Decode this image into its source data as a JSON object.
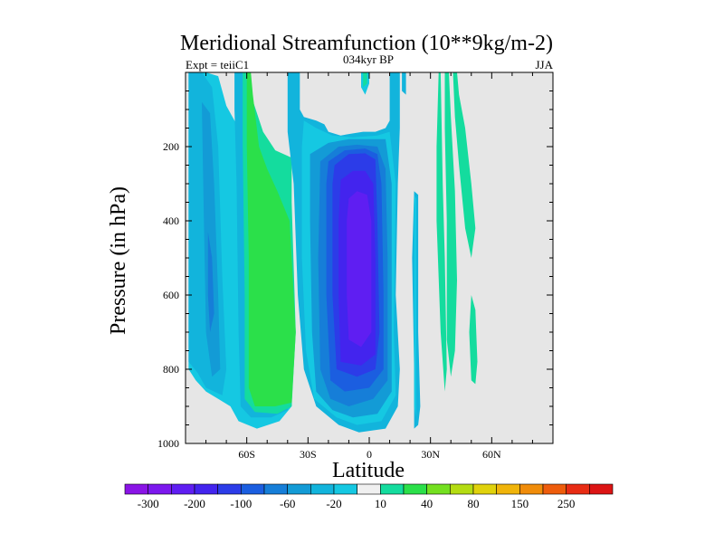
{
  "chart_data": {
    "type": "heatmap",
    "title": "Meridional Streamfunction (10**9kg/m-2)",
    "left_label": "Expt = teiiC1",
    "center_label": "034kyr BP",
    "right_label": "JJA",
    "xlabel": "Latitude",
    "ylabel": "Pressure (in hPa)",
    "xlim": [
      -90,
      90
    ],
    "ylim": [
      0,
      1000
    ],
    "y_inverted": true,
    "x_ticks": [
      {
        "value": -60,
        "label": "60S"
      },
      {
        "value": -30,
        "label": "30S"
      },
      {
        "value": 0,
        "label": "0"
      },
      {
        "value": 30,
        "label": "30N"
      },
      {
        "value": 60,
        "label": "60N"
      }
    ],
    "y_ticks": [
      {
        "value": 200,
        "label": "200"
      },
      {
        "value": 400,
        "label": "400"
      },
      {
        "value": 600,
        "label": "600"
      },
      {
        "value": 800,
        "label": "800"
      },
      {
        "value": 1000,
        "label": "1000"
      }
    ],
    "missing_color": "#e6e6e6",
    "colorbar": {
      "levels": [
        -300,
        -250,
        -200,
        -150,
        -100,
        -80,
        -60,
        -40,
        -20,
        -10,
        10,
        20,
        40,
        60,
        80,
        100,
        150,
        200,
        250,
        300
      ],
      "labels": [
        {
          "index": 1,
          "label": "-300"
        },
        {
          "index": 3,
          "label": "-200"
        },
        {
          "index": 5,
          "label": "-100"
        },
        {
          "index": 7,
          "label": "-60"
        },
        {
          "index": 9,
          "label": "-20"
        },
        {
          "index": 11,
          "label": "10"
        },
        {
          "index": 13,
          "label": "40"
        },
        {
          "index": 15,
          "label": "80"
        },
        {
          "index": 17,
          "label": "150"
        },
        {
          "index": 19,
          "label": "250"
        }
      ],
      "colors": [
        "#8a14e6",
        "#7c18ee",
        "#5f1ef2",
        "#4324ee",
        "#2c3ce8",
        "#1b5ee0",
        "#167ed8",
        "#139bd6",
        "#12b4dc",
        "#15c8e2",
        "#f0f0f0",
        "#14dc9e",
        "#2be04a",
        "#74e020",
        "#b4dc12",
        "#e0d20c",
        "#f0b40a",
        "#f08c0a",
        "#ee5c0c",
        "#e82c14",
        "#dc1414"
      ]
    },
    "regions": [
      {
        "fill": "#15c8e2",
        "points": [
          [
            -88.5,
            0
          ],
          [
            -80,
            0
          ],
          [
            -74,
            10
          ],
          [
            -70,
            90
          ],
          [
            -62,
            170
          ],
          [
            -55,
            210
          ],
          [
            -48,
            240
          ],
          [
            -44,
            270
          ],
          [
            -40,
            400
          ],
          [
            -37,
            700
          ],
          [
            -38,
            900
          ],
          [
            -44,
            940
          ],
          [
            -55,
            960
          ],
          [
            -64,
            940
          ],
          [
            -68,
            900
          ],
          [
            -74,
            880
          ],
          [
            -80,
            860
          ],
          [
            -85,
            830
          ],
          [
            -88.5,
            800
          ]
        ]
      },
      {
        "fill": "#12b4dc",
        "points": [
          [
            -88.5,
            0
          ],
          [
            -82,
            0
          ],
          [
            -77,
            40
          ],
          [
            -74,
            200
          ],
          [
            -72,
            550
          ],
          [
            -70,
            800
          ],
          [
            -72,
            870
          ],
          [
            -80,
            850
          ],
          [
            -84,
            810
          ],
          [
            -88.5,
            780
          ]
        ]
      },
      {
        "fill": "#139bd6",
        "points": [
          [
            -82,
            80
          ],
          [
            -78,
            110
          ],
          [
            -76,
            300
          ],
          [
            -74,
            600
          ],
          [
            -73,
            800
          ],
          [
            -77,
            820
          ],
          [
            -80,
            700
          ],
          [
            -81,
            400
          ]
        ]
      },
      {
        "fill": "#167ed8",
        "points": [
          [
            -79,
            430
          ],
          [
            -77,
            500
          ],
          [
            -76,
            650
          ],
          [
            -78,
            700
          ],
          [
            -79,
            600
          ]
        ]
      },
      {
        "fill": "#12b4dc",
        "points": [
          [
            -66,
            0
          ],
          [
            -62,
            0
          ],
          [
            -60,
            80
          ],
          [
            -56,
            160
          ],
          [
            -49,
            210
          ],
          [
            -45,
            240
          ],
          [
            -40,
            400
          ],
          [
            -37,
            700
          ],
          [
            -40,
            910
          ],
          [
            -48,
            930
          ],
          [
            -58,
            930
          ],
          [
            -63,
            900
          ],
          [
            -64,
            700
          ],
          [
            -65,
            300
          ],
          [
            -66,
            100
          ]
        ]
      },
      {
        "fill": "#14dc9e",
        "points": [
          [
            -62,
            0
          ],
          [
            -60,
            0
          ],
          [
            -58,
            60
          ],
          [
            -52,
            160
          ],
          [
            -46,
            210
          ],
          [
            -38,
            230
          ],
          [
            -38,
            350
          ],
          [
            -36,
            700
          ],
          [
            -38,
            900
          ],
          [
            -45,
            920
          ],
          [
            -56,
            915
          ],
          [
            -61,
            880
          ],
          [
            -61,
            600
          ],
          [
            -62,
            200
          ]
        ]
      },
      {
        "fill": "#2be04a",
        "points": [
          [
            -60,
            0
          ],
          [
            -58,
            0
          ],
          [
            -57,
            60
          ],
          [
            -54,
            200
          ],
          [
            -50,
            260
          ],
          [
            -45,
            320
          ],
          [
            -39,
            400
          ],
          [
            -36,
            700
          ],
          [
            -38,
            890
          ],
          [
            -46,
            900
          ],
          [
            -56,
            900
          ],
          [
            -59,
            850
          ],
          [
            -59,
            500
          ],
          [
            -60,
            200
          ]
        ]
      },
      {
        "fill": "#12b4dc",
        "points": [
          [
            -40,
            0
          ],
          [
            -34,
            0
          ],
          [
            -34,
            100
          ],
          [
            -32,
            120
          ],
          [
            -26,
            130
          ],
          [
            -22,
            140
          ],
          [
            -20,
            160
          ],
          [
            -14,
            170
          ],
          [
            -9,
            165
          ],
          [
            -3,
            160
          ],
          [
            3,
            160
          ],
          [
            8,
            150
          ],
          [
            10,
            130
          ],
          [
            10,
            0
          ],
          [
            15,
            0
          ],
          [
            15,
            150
          ],
          [
            14,
            300
          ],
          [
            13,
            600
          ],
          [
            15,
            800
          ],
          [
            14,
            900
          ],
          [
            8,
            960
          ],
          [
            -5,
            970
          ],
          [
            -15,
            950
          ],
          [
            -26,
            900
          ],
          [
            -32,
            800
          ],
          [
            -35,
            600
          ],
          [
            -37,
            300
          ],
          [
            -40,
            160
          ]
        ]
      },
      {
        "fill": "#15c8e2",
        "points": [
          [
            -32,
            130
          ],
          [
            -26,
            150
          ],
          [
            -18,
            170
          ],
          [
            -8,
            175
          ],
          [
            4,
            170
          ],
          [
            10,
            160
          ],
          [
            13,
            300
          ],
          [
            12,
            700
          ],
          [
            13,
            870
          ],
          [
            6,
            940
          ],
          [
            -6,
            950
          ],
          [
            -16,
            930
          ],
          [
            -27,
            880
          ],
          [
            -31,
            750
          ],
          [
            -33,
            500
          ],
          [
            -33,
            200
          ]
        ]
      },
      {
        "fill": "#139bd6",
        "points": [
          [
            -29,
            220
          ],
          [
            -20,
            190
          ],
          [
            -10,
            180
          ],
          [
            0,
            180
          ],
          [
            8,
            180
          ],
          [
            11,
            300
          ],
          [
            11,
            700
          ],
          [
            11,
            860
          ],
          [
            4,
            920
          ],
          [
            -8,
            930
          ],
          [
            -18,
            910
          ],
          [
            -26,
            860
          ],
          [
            -28,
            700
          ],
          [
            -29,
            400
          ]
        ]
      },
      {
        "fill": "#167ed8",
        "points": [
          [
            -24,
            240
          ],
          [
            -15,
            200
          ],
          [
            -6,
            195
          ],
          [
            4,
            200
          ],
          [
            8,
            260
          ],
          [
            9,
            500
          ],
          [
            9,
            830
          ],
          [
            2,
            880
          ],
          [
            -10,
            900
          ],
          [
            -19,
            880
          ],
          [
            -24,
            800
          ],
          [
            -25,
            500
          ]
        ]
      },
      {
        "fill": "#1b5ee0",
        "points": [
          [
            -20,
            240
          ],
          [
            -12,
            210
          ],
          [
            -2,
            205
          ],
          [
            4,
            220
          ],
          [
            6,
            300
          ],
          [
            7,
            600
          ],
          [
            7,
            800
          ],
          [
            0,
            850
          ],
          [
            -12,
            860
          ],
          [
            -19,
            830
          ],
          [
            -21,
            600
          ],
          [
            -21,
            300
          ]
        ]
      },
      {
        "fill": "#2c3ce8",
        "points": [
          [
            -17,
            250
          ],
          [
            -10,
            220
          ],
          [
            -2,
            218
          ],
          [
            3,
            235
          ],
          [
            4,
            400
          ],
          [
            5,
            700
          ],
          [
            3,
            800
          ],
          [
            -6,
            820
          ],
          [
            -16,
            800
          ],
          [
            -18,
            600
          ],
          [
            -18,
            300
          ]
        ]
      },
      {
        "fill": "#4324ee",
        "points": [
          [
            -14,
            290
          ],
          [
            -8,
            265
          ],
          [
            -2,
            265
          ],
          [
            2,
            300
          ],
          [
            3,
            500
          ],
          [
            3,
            760
          ],
          [
            -4,
            790
          ],
          [
            -14,
            780
          ],
          [
            -15,
            600
          ],
          [
            -15,
            400
          ]
        ]
      },
      {
        "fill": "#5f1ef2",
        "points": [
          [
            -10,
            340
          ],
          [
            -6,
            320
          ],
          [
            -1,
            330
          ],
          [
            1,
            400
          ],
          [
            1,
            700
          ],
          [
            -4,
            740
          ],
          [
            -10,
            720
          ],
          [
            -11,
            600
          ],
          [
            -11,
            400
          ]
        ]
      },
      {
        "fill": "#15c8e2",
        "points": [
          [
            -4,
            0
          ],
          [
            0,
            0
          ],
          [
            0,
            30
          ],
          [
            -2,
            60
          ],
          [
            -4,
            40
          ]
        ]
      },
      {
        "fill": "#14dc9e",
        "points": [
          [
            -3,
            0
          ],
          [
            -1,
            0
          ],
          [
            -1,
            30
          ],
          [
            -3,
            40
          ]
        ]
      },
      {
        "fill": "#12b4dc",
        "points": [
          [
            16,
            0
          ],
          [
            18,
            0
          ],
          [
            18,
            60
          ],
          [
            16,
            50
          ]
        ]
      },
      {
        "fill": "#12b4dc",
        "points": [
          [
            22,
            320
          ],
          [
            24,
            330
          ],
          [
            24,
            700
          ],
          [
            25,
            900
          ],
          [
            24,
            950
          ],
          [
            22,
            960
          ],
          [
            22,
            800
          ],
          [
            21,
            500
          ]
        ]
      },
      {
        "fill": "#15c8e2",
        "points": [
          [
            22,
            330
          ],
          [
            23,
            340
          ],
          [
            23,
            800
          ],
          [
            23,
            930
          ],
          [
            22,
            900
          ]
        ]
      },
      {
        "fill": "#14dc9e",
        "points": [
          [
            34,
            0
          ],
          [
            35,
            0
          ],
          [
            36,
            300
          ],
          [
            37,
            500
          ],
          [
            38,
            800
          ],
          [
            37,
            860
          ],
          [
            35,
            700
          ],
          [
            33,
            400
          ],
          [
            33,
            200
          ]
        ]
      },
      {
        "fill": "#14dc9e",
        "points": [
          [
            37,
            0
          ],
          [
            39,
            0
          ],
          [
            40,
            120
          ],
          [
            42,
            320
          ],
          [
            43,
            560
          ],
          [
            42,
            750
          ],
          [
            40,
            820
          ],
          [
            38,
            720
          ],
          [
            38,
            400
          ],
          [
            37,
            150
          ]
        ]
      },
      {
        "fill": "#14dc9e",
        "points": [
          [
            41,
            0
          ],
          [
            43,
            0
          ],
          [
            44,
            60
          ],
          [
            47,
            150
          ],
          [
            50,
            300
          ],
          [
            52,
            420
          ],
          [
            50,
            500
          ],
          [
            47,
            420
          ],
          [
            44,
            250
          ],
          [
            42,
            120
          ]
        ]
      },
      {
        "fill": "#14dc9e",
        "points": [
          [
            50,
            600
          ],
          [
            52,
            640
          ],
          [
            53,
            780
          ],
          [
            52,
            840
          ],
          [
            50,
            830
          ],
          [
            49,
            700
          ]
        ]
      }
    ]
  }
}
